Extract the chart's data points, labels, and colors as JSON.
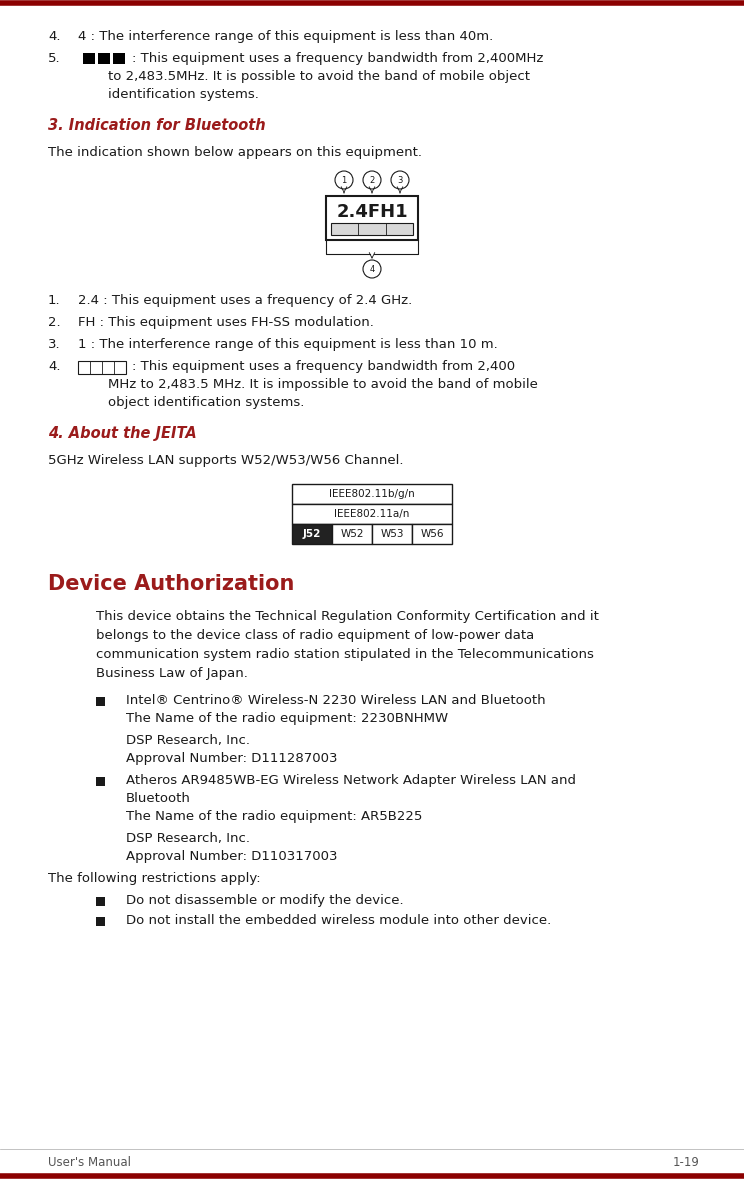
{
  "bg_color": "#ffffff",
  "top_border_color": "#8B0000",
  "bottom_border_color": "#8B0000",
  "red_heading_color": "#9B1B1B",
  "black_text_color": "#1a1a1a",
  "body_font_size": 9.5,
  "heading_font_size": 10.5,
  "device_auth_font_size": 15,
  "footer_left": "User's Manual",
  "footer_right": "1-19",
  "bullet1_line1": "Intel® Centrino® Wireless-N 2230 Wireless LAN and Bluetooth",
  "bullet1_line2": "The Name of the radio equipment: 2230BNHMW",
  "bullet1_line3": "DSP Research, Inc.",
  "bullet1_line4": "Approval Number: D111287003",
  "bullet2_line1": "Atheros AR9485WB-EG Wireless Network Adapter Wireless LAN and",
  "bullet2_line2": "Bluetooth",
  "bullet2_line3": "The Name of the radio equipment: AR5B225",
  "bullet2_line4": "DSP Research, Inc.",
  "bullet2_line5": "Approval Number: D110317003",
  "restrict1": "Do not disassemble or modify the device.",
  "restrict2": "Do not install the embedded wireless module into other device."
}
